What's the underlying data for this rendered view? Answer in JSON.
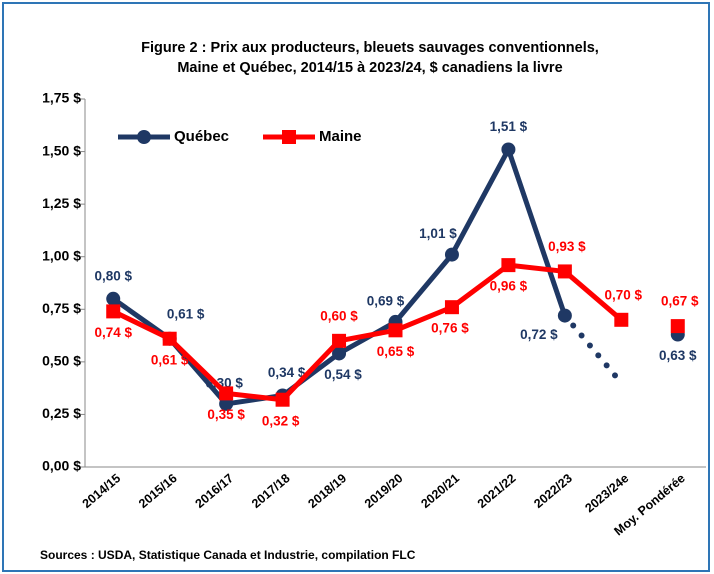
{
  "chart_data": {
    "type": "line",
    "title": "Figure 2 : Prix aux producteurs, bleuets sauvages conventionnels,",
    "subtitle": "Maine et Québec, 2014/15 à 2023/24, $ canadiens la livre",
    "source": "Sources : USDA, Statistique Canada et Industrie, compilation FLC",
    "categories": [
      "2014/15",
      "2015/16",
      "2016/17",
      "2017/18",
      "2018/19",
      "2019/20",
      "2020/21",
      "2021/22",
      "2022/23",
      "2023/24e",
      "Moy. Pondérée"
    ],
    "detached_last": true,
    "series": [
      {
        "name": "Québec",
        "color": "#1f3864",
        "marker": "circle",
        "dotted_last_segment": true,
        "values": [
          0.8,
          0.61,
          0.3,
          0.34,
          0.54,
          0.69,
          1.01,
          1.51,
          0.72,
          0.4,
          0.63
        ],
        "value_labels": [
          "0,80 $",
          "0,61 $",
          "0,30 $",
          "0,34 $",
          "0,54 $",
          "0,69 $",
          "1,01 $",
          "1,51 $",
          "0,72 $",
          null,
          "0,63 $"
        ]
      },
      {
        "name": "Maine",
        "color": "#ff0000",
        "marker": "square",
        "values": [
          0.74,
          0.61,
          0.35,
          0.32,
          0.6,
          0.65,
          0.76,
          0.96,
          0.93,
          0.7,
          0.67
        ],
        "value_labels": [
          "0,74 $",
          "0,61 $",
          "0,35 $",
          "0,32 $",
          "0,60 $",
          "0,65 $",
          "0,76 $",
          "0,96 $",
          "0,93 $",
          "0,70 $",
          "0,67 $"
        ]
      }
    ],
    "ylim": [
      0,
      1.75
    ],
    "yticks": [
      {
        "value": 0,
        "label": "0,00 $"
      },
      {
        "value": 0.25,
        "label": "0,25 $"
      },
      {
        "value": 0.5,
        "label": "0,50 $"
      },
      {
        "value": 0.75,
        "label": "0,75 $"
      },
      {
        "value": 1,
        "label": "1,00 $"
      },
      {
        "value": 1.25,
        "label": "1,25 $"
      },
      {
        "value": 1.5,
        "label": "1,50 $"
      },
      {
        "value": 1.75,
        "label": "1,75 $"
      }
    ],
    "grid": false,
    "legend": "upper left"
  }
}
